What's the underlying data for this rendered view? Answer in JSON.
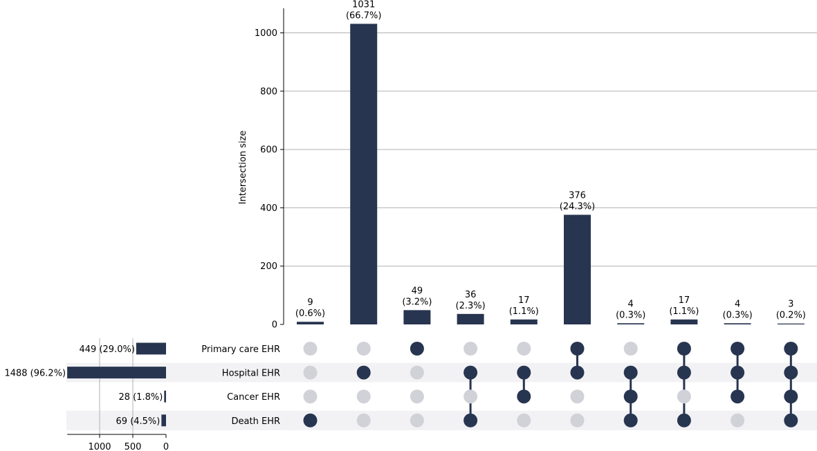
{
  "chart_data": {
    "type": "bar",
    "subtype": "upset",
    "ylabel": "Intersection size",
    "ylim": [
      0,
      1085
    ],
    "yticks": [
      0,
      200,
      400,
      600,
      800,
      1000
    ],
    "grid": true,
    "bar_color": "#283550",
    "sets": [
      {
        "name": "Primary care EHR",
        "size": 449,
        "label": "449 (29.0%)"
      },
      {
        "name": "Hospital EHR",
        "size": 1488,
        "label": "1488 (96.2%)"
      },
      {
        "name": "Cancer EHR",
        "size": 28,
        "label": "28 (1.8%)"
      },
      {
        "name": "Death EHR",
        "size": 69,
        "label": "69 (4.5%)"
      }
    ],
    "set_size_ticks": [
      1000,
      500,
      0
    ],
    "set_size_max": 1488,
    "intersections": [
      {
        "value": 9,
        "count_label": "9",
        "pct_label": "(0.6%)",
        "members": [
          3
        ]
      },
      {
        "value": 1031,
        "count_label": "1031",
        "pct_label": "(66.7%)",
        "members": [
          1
        ]
      },
      {
        "value": 49,
        "count_label": "49",
        "pct_label": "(3.2%)",
        "members": [
          0
        ]
      },
      {
        "value": 36,
        "count_label": "36",
        "pct_label": "(2.3%)",
        "members": [
          1,
          3
        ]
      },
      {
        "value": 17,
        "count_label": "17",
        "pct_label": "(1.1%)",
        "members": [
          1,
          2
        ]
      },
      {
        "value": 376,
        "count_label": "376",
        "pct_label": "(24.3%)",
        "members": [
          0,
          1
        ]
      },
      {
        "value": 4,
        "count_label": "4",
        "pct_label": "(0.3%)",
        "members": [
          1,
          2,
          3
        ]
      },
      {
        "value": 17,
        "count_label": "17",
        "pct_label": "(1.1%)",
        "members": [
          0,
          1,
          3
        ]
      },
      {
        "value": 4,
        "count_label": "4",
        "pct_label": "(0.3%)",
        "members": [
          0,
          1,
          2
        ]
      },
      {
        "value": 3,
        "count_label": "3",
        "pct_label": "(0.2%)",
        "members": [
          0,
          1,
          2,
          3
        ]
      }
    ]
  }
}
